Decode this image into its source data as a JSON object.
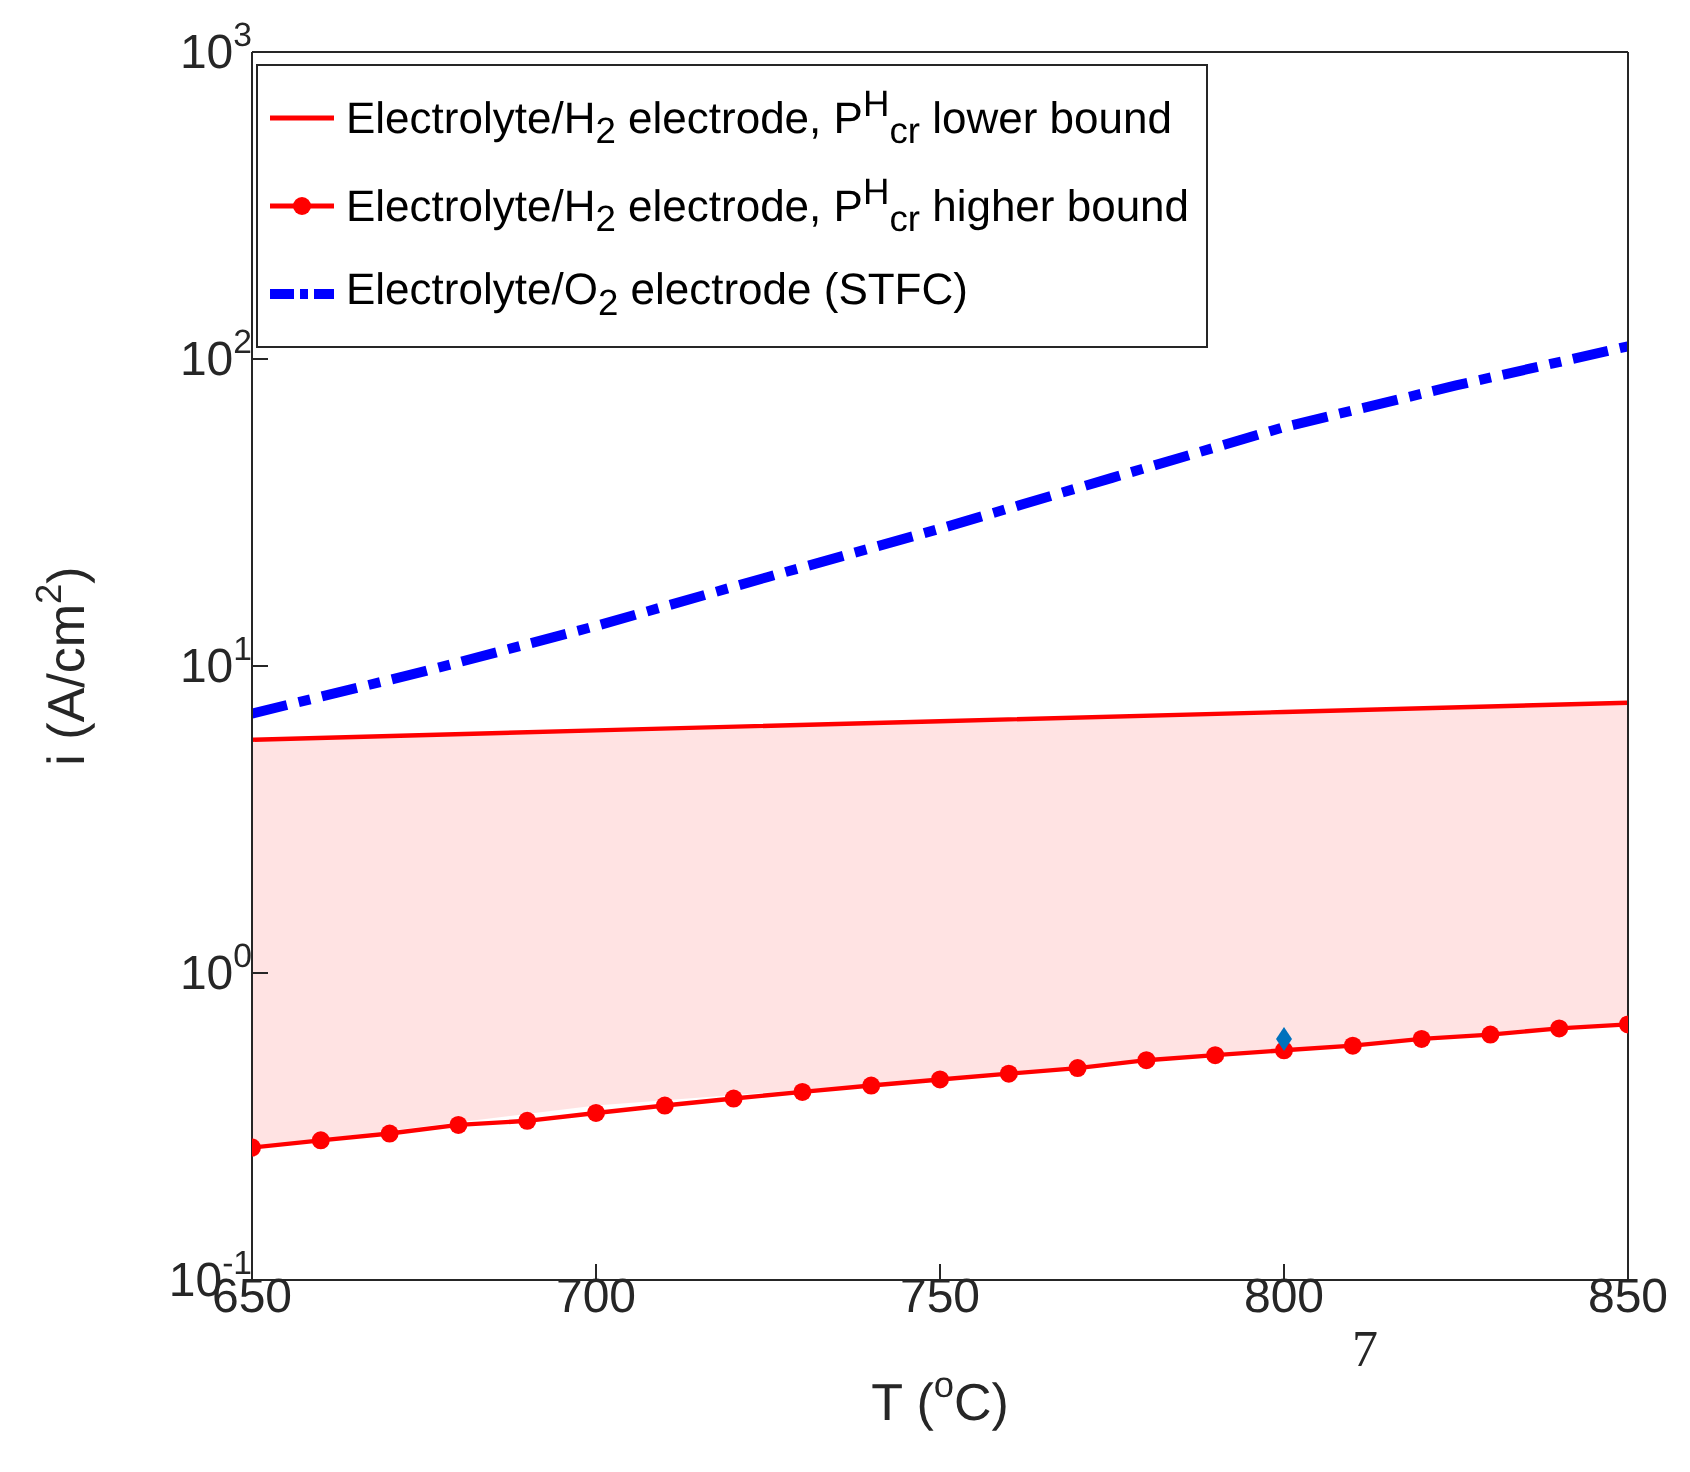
{
  "chart_data": {
    "type": "line",
    "xlabel": "T ($^{o}$C)",
    "ylabel": "i (A/cm$^{2}$)",
    "log": "y",
    "xlim": [
      650,
      850
    ],
    "xticks": [
      650,
      700,
      750,
      800,
      850
    ],
    "ylim": [
      0.1,
      1000
    ],
    "yticks": [
      {
        "value": 0.1,
        "label": "10$^{-1}$"
      },
      {
        "value": 1,
        "label": "10$^{0}$"
      },
      {
        "value": 10,
        "label": "10$^{1}$"
      },
      {
        "value": 100,
        "label": "10$^{2}$"
      },
      {
        "value": 1000,
        "label": "10$^{3}$"
      }
    ],
    "grid": false,
    "annotations": [
      "7"
    ],
    "legend": "top left",
    "series": [
      {
        "name": "Electrolyte/H$_{2}$ electrode, P$^{H}$$_{cr}$ lower bound",
        "color": "#ff0000",
        "marker": "none",
        "line_style": "solid",
        "x": [
          650,
          700,
          750,
          800,
          850
        ],
        "values": [
          5.75,
          6.17,
          6.61,
          7.08,
          7.59
        ],
        "lower": [
          0.27,
          0.37,
          0.45,
          0.56,
          0.68
        ],
        "upper": [
          5.75,
          6.17,
          6.61,
          7.08,
          7.59
        ]
      },
      {
        "name": "Electrolyte/H$_{2}$ electrode, P$^{H}$$_{cr}$ higher bound",
        "color": "#ff0000",
        "marker": "circle",
        "line_style": "solid",
        "x": [
          650,
          660,
          670,
          680,
          690,
          700,
          710,
          720,
          730,
          740,
          750,
          760,
          770,
          780,
          790,
          800,
          810,
          820,
          830,
          840,
          850
        ],
        "values": [
          0.27,
          0.285,
          0.3,
          0.32,
          0.33,
          0.35,
          0.37,
          0.39,
          0.41,
          0.43,
          0.45,
          0.47,
          0.49,
          0.52,
          0.54,
          0.56,
          0.58,
          0.61,
          0.63,
          0.66,
          0.68
        ]
      },
      {
        "name": "Electrolyte/O$_{2}$ electrode (STFC)",
        "color": "#0000ff",
        "marker": "none",
        "line_style": "dashed",
        "x": [
          650,
          675,
          700,
          725,
          750,
          775,
          800,
          825,
          850
        ],
        "values": [
          7.0,
          9.6,
          13.5,
          19.5,
          28,
          41,
          60,
          82,
          110
        ]
      },
      {
        "type": "scatter",
        "color": "#0072bd",
        "marker": "diamond",
        "x": [
          800
        ],
        "values": [
          0.61
        ]
      }
    ]
  }
}
